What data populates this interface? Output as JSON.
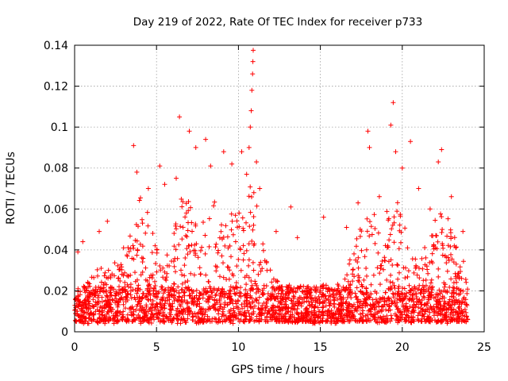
{
  "chart_data": {
    "type": "scatter",
    "title": "Day 219 of 2022, Rate Of TEC Index for receiver p733",
    "xlabel": "GPS time / hours",
    "ylabel": "ROTI / TECUs",
    "xlim": [
      0,
      25
    ],
    "ylim": [
      0,
      0.14
    ],
    "x_ticks": [
      0,
      5,
      10,
      15,
      20,
      25
    ],
    "y_ticks": [
      0,
      0.02,
      0.04,
      0.06,
      0.08,
      0.1,
      0.12,
      0.14
    ],
    "grid": true,
    "marker": "+",
    "marker_color": "#ff0000",
    "data_span_hours": [
      0,
      24
    ],
    "series": [
      {
        "points": [
          [
            0.2,
            0.039
          ],
          [
            0.5,
            0.044
          ],
          [
            1.5,
            0.049
          ],
          [
            2.0,
            0.054
          ],
          [
            3.6,
            0.091
          ],
          [
            3.8,
            0.078
          ],
          [
            4.5,
            0.07
          ],
          [
            5.2,
            0.081
          ],
          [
            5.5,
            0.072
          ],
          [
            6.2,
            0.075
          ],
          [
            6.4,
            0.105
          ],
          [
            7.0,
            0.098
          ],
          [
            7.4,
            0.09
          ],
          [
            8.0,
            0.094
          ],
          [
            8.3,
            0.081
          ],
          [
            9.1,
            0.088
          ],
          [
            9.6,
            0.082
          ],
          [
            10.2,
            0.088
          ],
          [
            10.5,
            0.077
          ],
          [
            10.65,
            0.09
          ],
          [
            10.72,
            0.1
          ],
          [
            10.78,
            0.108
          ],
          [
            10.82,
            0.118
          ],
          [
            10.86,
            0.126
          ],
          [
            10.88,
            0.132
          ],
          [
            10.9,
            0.1375
          ],
          [
            11.1,
            0.083
          ],
          [
            11.3,
            0.07
          ],
          [
            12.3,
            0.049
          ],
          [
            13.2,
            0.061
          ],
          [
            13.6,
            0.046
          ],
          [
            15.2,
            0.056
          ],
          [
            16.6,
            0.051
          ],
          [
            17.3,
            0.063
          ],
          [
            17.9,
            0.098
          ],
          [
            18.0,
            0.09
          ],
          [
            18.6,
            0.066
          ],
          [
            19.3,
            0.101
          ],
          [
            19.45,
            0.112
          ],
          [
            19.6,
            0.088
          ],
          [
            20.0,
            0.08
          ],
          [
            20.5,
            0.093
          ],
          [
            21.0,
            0.07
          ],
          [
            21.7,
            0.06
          ],
          [
            22.2,
            0.083
          ],
          [
            22.4,
            0.089
          ],
          [
            23.0,
            0.066
          ],
          [
            23.7,
            0.049
          ]
        ]
      }
    ]
  }
}
